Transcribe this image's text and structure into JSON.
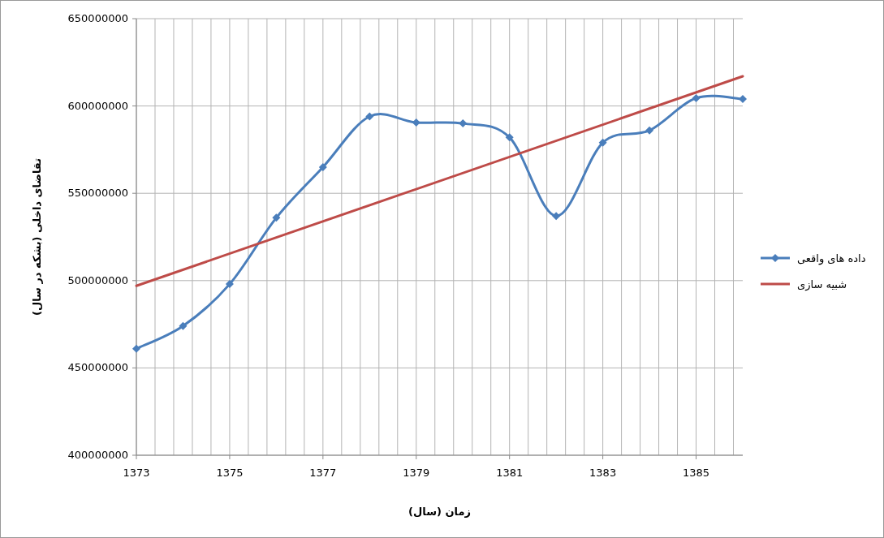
{
  "chart_data": {
    "type": "line",
    "xlabel": "زمان (سال)",
    "ylabel": "تقاضای داخلی (بشکه در سال)",
    "xlim": [
      1373,
      1386
    ],
    "xticks": [
      1373,
      1375,
      1377,
      1379,
      1381,
      1383,
      1385
    ],
    "ylim": [
      400000000,
      650000000
    ],
    "yticks": [
      400000000,
      450000000,
      500000000,
      550000000,
      600000000,
      650000000
    ],
    "grid": true,
    "legend": "right",
    "series": [
      {
        "name": "داده های واقعی",
        "color": "#4a7ebb",
        "marker": "diamond",
        "x": [
          1373,
          1374,
          1375,
          1376,
          1377,
          1378,
          1379,
          1380,
          1381,
          1382,
          1383,
          1384,
          1385,
          1386
        ],
        "values": [
          461000000,
          474000000,
          498000000,
          536000000,
          565000000,
          594000000,
          590500000,
          590000000,
          582000000,
          537000000,
          579000000,
          586000000,
          604500000,
          604000000
        ]
      },
      {
        "name": "شبیه سازی",
        "color": "#be4b48",
        "marker": "none",
        "x": [
          1373,
          1386
        ],
        "values": [
          497000000,
          617000000
        ]
      }
    ]
  }
}
